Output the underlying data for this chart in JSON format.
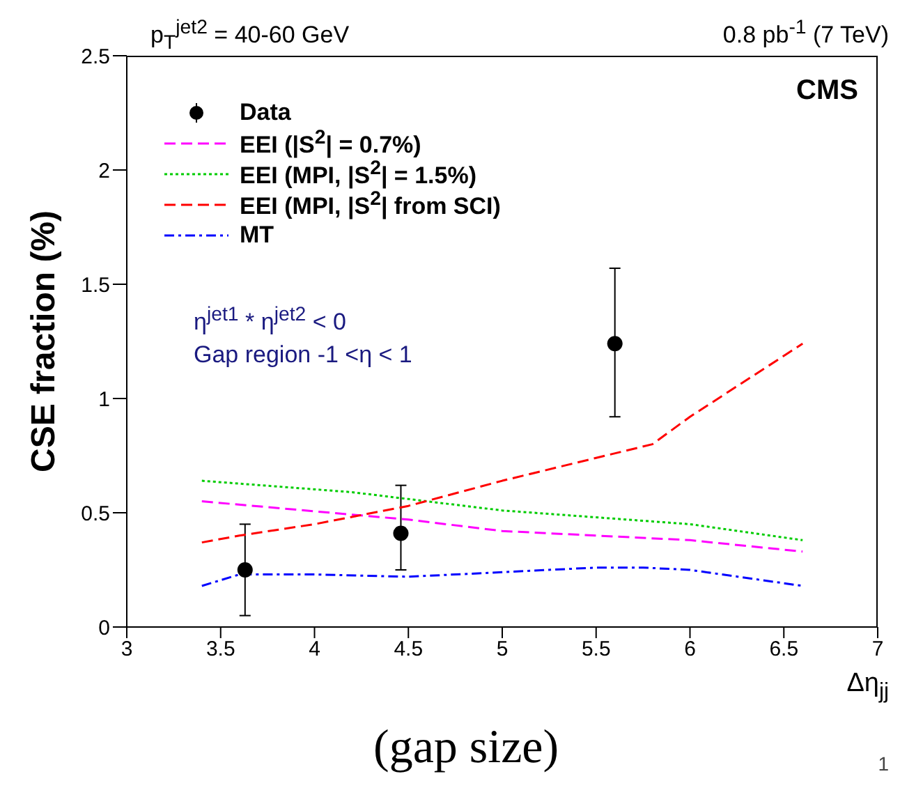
{
  "chart_data": {
    "type": "line",
    "title": "p$_{T}$$^{jet2}$ = 40-60 GeV",
    "subtitle": "0.8 pb$^{-1}$ (7 TeV)",
    "xlabel": "Δη$_{jj}$",
    "ylabel": "CSE fraction (%)",
    "annotations": [
      "CMS",
      "η$^{jet1}$ * η$^{jet2}$ < 0",
      "Gap region -1 <η < 1",
      "(gap size)",
      "1"
    ],
    "xlim": [
      3,
      7
    ],
    "xticks": [
      3,
      3.5,
      4,
      4.5,
      5,
      5.5,
      6,
      6.5,
      7
    ],
    "ylim": [
      0,
      2.5
    ],
    "yticks": [
      0,
      0.5,
      1,
      1.5,
      2,
      2.5
    ],
    "grid": false,
    "legend": "top left",
    "series": [
      {
        "name": "Data",
        "type": "scatter",
        "color": "#000000",
        "marker": "circle",
        "x": [
          3.63,
          4.46,
          5.6
        ],
        "values": [
          0.25,
          0.41,
          1.24
        ],
        "errors": [
          [
            0.05,
            0.45
          ],
          [
            0.25,
            0.62
          ],
          [
            0.92,
            1.57
          ]
        ]
      },
      {
        "name": "EEI (|S$^{2}$| = 0.7%)",
        "color": "#ff00ff",
        "line_style": "dashed",
        "x": [
          3.4,
          4.5,
          5,
          6,
          6.6
        ],
        "values": [
          0.55,
          0.47,
          0.42,
          0.38,
          0.33
        ]
      },
      {
        "name": "EEI (MPI, |S$^{2}$| = 1.5%)",
        "color": "#00cc00",
        "line_style": "dotted",
        "x": [
          3.4,
          4.2,
          4.5,
          5,
          6,
          6.6
        ],
        "values": [
          0.64,
          0.59,
          0.56,
          0.51,
          0.45,
          0.38
        ]
      },
      {
        "name": "EEI (MPI, |S$^{2}$| from SCI)",
        "color": "#ff0000",
        "line_style": "dashed",
        "x": [
          3.4,
          3.6,
          4,
          4.5,
          5,
          5.5,
          5.8,
          6,
          6.6
        ],
        "values": [
          0.37,
          0.4,
          0.45,
          0.53,
          0.64,
          0.74,
          0.8,
          0.92,
          1.24
        ]
      },
      {
        "name": "MT",
        "color": "#0000ff",
        "line_style": "dashdot",
        "x": [
          3.4,
          3.6,
          4,
          4.5,
          5,
          5.5,
          5.75,
          6,
          6.6
        ],
        "values": [
          0.18,
          0.23,
          0.23,
          0.22,
          0.24,
          0.26,
          0.26,
          0.25,
          0.18
        ]
      }
    ]
  }
}
